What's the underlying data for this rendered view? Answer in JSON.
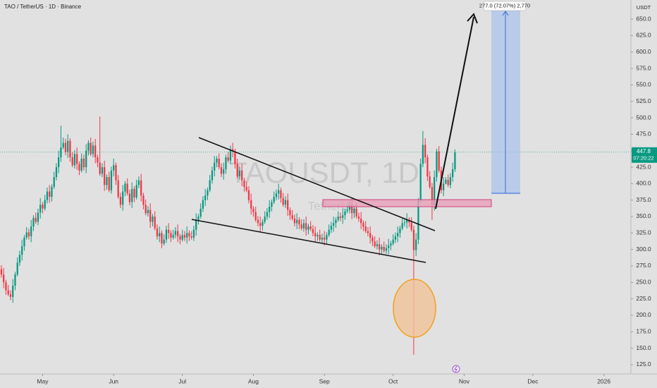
{
  "header": {
    "symbol": "TAO / TetherUS · 1D · Binance",
    "currency": "USDT"
  },
  "chart_data": {
    "type": "candlestick",
    "watermark": "TAOUSDT, 1D",
    "watermark_sub": "TetherUS",
    "up_color": "#089981",
    "down_color": "#f23645",
    "xlim": [
      -0.6,
      274.8
    ],
    "ylim": [
      111,
      679
    ],
    "grid": false,
    "xticks": [
      {
        "value": 18,
        "label": "May"
      },
      {
        "value": 49,
        "label": "Jun"
      },
      {
        "value": 79,
        "label": "Jul"
      },
      {
        "value": 110,
        "label": "Aug"
      },
      {
        "value": 141,
        "label": "Sep"
      },
      {
        "value": 171,
        "label": "Oct"
      },
      {
        "value": 202,
        "label": "Nov"
      },
      {
        "value": 232,
        "label": "Dec"
      },
      {
        "value": 263,
        "label": "2026"
      }
    ],
    "yticks": [
      {
        "value": 125,
        "label": "125.0"
      },
      {
        "value": 150,
        "label": "150.0"
      },
      {
        "value": 175,
        "label": "175.0"
      },
      {
        "value": 200,
        "label": "200.0"
      },
      {
        "value": 225,
        "label": "225.0"
      },
      {
        "value": 250,
        "label": "250.0"
      },
      {
        "value": 275,
        "label": "275.0"
      },
      {
        "value": 300,
        "label": "300.0"
      },
      {
        "value": 325,
        "label": "325.0"
      },
      {
        "value": 350,
        "label": "350.0"
      },
      {
        "value": 375,
        "label": "375.0"
      },
      {
        "value": 400,
        "label": "400.0"
      },
      {
        "value": 425,
        "label": "425.0"
      },
      {
        "value": 450,
        "label": "450.0"
      },
      {
        "value": 475,
        "label": "475.0"
      },
      {
        "value": 500,
        "label": "500.0"
      },
      {
        "value": 525,
        "label": "525.0"
      },
      {
        "value": 550,
        "label": "550.0"
      },
      {
        "value": 575,
        "label": "575.0"
      },
      {
        "value": 600,
        "label": "600.0"
      },
      {
        "value": 625,
        "label": "625.0"
      },
      {
        "value": 650,
        "label": "650.0"
      }
    ],
    "countdown": "07:20:22",
    "measure_label": "277.0 (72.07%) 2,770",
    "open": [
      270,
      262,
      250,
      238,
      232,
      228,
      245,
      262,
      280,
      292,
      305,
      318,
      326,
      320,
      335,
      348,
      342,
      356,
      368,
      362,
      375,
      388,
      380,
      395,
      410,
      425,
      440,
      455,
      462,
      448,
      465,
      440,
      428,
      445,
      430,
      420,
      438,
      425,
      450,
      462,
      445,
      458,
      440,
      432,
      415,
      425,
      398,
      410,
      390,
      420,
      428,
      405,
      380,
      368,
      388,
      400,
      385,
      372,
      392,
      379,
      398,
      405,
      382,
      368,
      355,
      360,
      342,
      350,
      332,
      320,
      325,
      309,
      315,
      330,
      325,
      318,
      322,
      328,
      320,
      315,
      322,
      318,
      325,
      320,
      318,
      330,
      345,
      350,
      362,
      375,
      382,
      390,
      405,
      420,
      432,
      438,
      425,
      415,
      422,
      440,
      435,
      452,
      449,
      430,
      411,
      420,
      405,
      395,
      390,
      375,
      362,
      357,
      345,
      340,
      336,
      342,
      350,
      357,
      365,
      372,
      380,
      385,
      390,
      378,
      368,
      375,
      360,
      352,
      347,
      340,
      345,
      338,
      332,
      340,
      330,
      335,
      331,
      325,
      320,
      322,
      315,
      318,
      315,
      322,
      330,
      336,
      340,
      345,
      350,
      348,
      352,
      358,
      360,
      368,
      355,
      362,
      350,
      347,
      340,
      335,
      328,
      325,
      318,
      312,
      305,
      308,
      300,
      304,
      298,
      302,
      306,
      309,
      315,
      320,
      325,
      332,
      340,
      341,
      345,
      341,
      330,
      299,
      315,
      374,
      430,
      459,
      440,
      411,
      395,
      368,
      410,
      449,
      420,
      390,
      400,
      406,
      398,
      410,
      422
    ],
    "high": [
      276,
      272,
      254,
      246,
      238,
      255,
      266,
      288,
      298,
      315,
      322,
      334,
      332,
      345,
      352,
      356,
      362,
      378,
      372,
      383,
      394,
      398,
      399,
      418,
      431,
      450,
      488,
      470,
      468,
      475,
      469,
      448,
      451,
      455,
      434,
      446,
      444,
      460,
      466,
      470,
      464,
      468,
      444,
      502,
      431,
      435,
      414,
      418,
      426,
      438,
      432,
      413,
      386,
      398,
      404,
      408,
      391,
      402,
      396,
      406,
      411,
      415,
      386,
      376,
      366,
      370,
      354,
      358,
      338,
      335,
      329,
      323,
      336,
      340,
      329,
      330,
      334,
      338,
      324,
      330,
      328,
      335,
      329,
      328,
      336,
      355,
      354,
      370,
      381,
      392,
      394,
      413,
      426,
      442,
      442,
      446,
      431,
      432,
      444,
      448,
      458,
      462,
      453,
      438,
      426,
      430,
      409,
      403,
      396,
      385,
      366,
      365,
      351,
      350,
      346,
      358,
      363,
      375,
      376,
      388,
      391,
      400,
      394,
      386,
      381,
      385,
      364,
      360,
      353,
      355,
      349,
      346,
      346,
      350,
      339,
      343,
      337,
      335,
      326,
      330,
      324,
      328,
      326,
      338,
      342,
      350,
      349,
      358,
      356,
      362,
      362,
      368,
      374,
      378,
      366,
      370,
      356,
      357,
      344,
      343,
      334,
      335,
      322,
      320,
      314,
      318,
      308,
      312,
      308,
      316,
      313,
      323,
      326,
      335,
      336,
      348,
      347,
      355,
      349,
      349,
      336,
      325,
      378,
      438,
      480,
      469,
      444,
      419,
      401,
      420,
      453,
      457,
      426,
      410,
      410,
      414,
      416,
      432,
      452
    ],
    "low": [
      257,
      241,
      231,
      229,
      223,
      219,
      238,
      259,
      275,
      283,
      298,
      315,
      315,
      311,
      328,
      339,
      337,
      347,
      355,
      359,
      370,
      371,
      373,
      392,
      405,
      416,
      433,
      452,
      443,
      439,
      433,
      425,
      423,
      421,
      413,
      417,
      420,
      416,
      443,
      442,
      440,
      431,
      425,
      412,
      410,
      389,
      391,
      387,
      385,
      411,
      398,
      377,
      363,
      359,
      381,
      382,
      367,
      363,
      372,
      376,
      393,
      373,
      361,
      352,
      350,
      333,
      335,
      329,
      315,
      311,
      302,
      306,
      310,
      316,
      311,
      315,
      317,
      311,
      308,
      312,
      313,
      309,
      313,
      315,
      313,
      321,
      338,
      347,
      357,
      366,
      375,
      387,
      400,
      411,
      425,
      422,
      410,
      406,
      415,
      432,
      430,
      440,
      423,
      408,
      406,
      396,
      388,
      387,
      370,
      353,
      350,
      342,
      335,
      327,
      329,
      339,
      345,
      348,
      358,
      369,
      375,
      376,
      371,
      365,
      363,
      351,
      345,
      344,
      335,
      331,
      331,
      329,
      327,
      321,
      323,
      328,
      320,
      311,
      313,
      312,
      310,
      306,
      308,
      319,
      325,
      327,
      333,
      342,
      343,
      339,
      345,
      355,
      355,
      346,
      348,
      347,
      342,
      331,
      328,
      325,
      320,
      309,
      305,
      302,
      300,
      291,
      293,
      295,
      293,
      293,
      299,
      306,
      310,
      311,
      318,
      329,
      335,
      332,
      334,
      327,
      140,
      290,
      308,
      371,
      425,
      431,
      404,
      392,
      345,
      359,
      403,
      417,
      385,
      381,
      399,
      395,
      393,
      403,
      418
    ],
    "close": [
      262,
      250,
      238,
      232,
      228,
      245,
      262,
      280,
      292,
      305,
      318,
      326,
      320,
      335,
      348,
      342,
      356,
      368,
      362,
      375,
      388,
      380,
      395,
      410,
      425,
      440,
      455,
      462,
      448,
      465,
      440,
      428,
      445,
      430,
      420,
      438,
      425,
      450,
      462,
      445,
      458,
      440,
      432,
      415,
      425,
      398,
      410,
      390,
      420,
      428,
      405,
      380,
      368,
      388,
      400,
      385,
      372,
      392,
      379,
      398,
      405,
      382,
      368,
      355,
      360,
      342,
      350,
      332,
      320,
      325,
      309,
      315,
      330,
      325,
      318,
      322,
      328,
      320,
      315,
      322,
      318,
      325,
      320,
      318,
      330,
      345,
      350,
      362,
      375,
      382,
      390,
      405,
      420,
      432,
      438,
      425,
      415,
      422,
      440,
      435,
      452,
      449,
      430,
      411,
      420,
      405,
      395,
      390,
      375,
      362,
      357,
      345,
      340,
      336,
      342,
      350,
      357,
      365,
      372,
      380,
      385,
      390,
      378,
      368,
      375,
      360,
      352,
      347,
      340,
      345,
      338,
      332,
      340,
      330,
      335,
      331,
      325,
      320,
      322,
      315,
      318,
      315,
      322,
      330,
      336,
      340,
      345,
      350,
      348,
      352,
      358,
      360,
      368,
      355,
      362,
      350,
      347,
      340,
      335,
      328,
      325,
      318,
      312,
      305,
      308,
      300,
      304,
      298,
      302,
      306,
      309,
      315,
      320,
      325,
      332,
      340,
      341,
      345,
      341,
      330,
      299,
      315,
      374,
      430,
      459,
      440,
      411,
      395,
      368,
      410,
      449,
      420,
      390,
      400,
      406,
      398,
      410,
      422,
      447.8
    ]
  }
}
